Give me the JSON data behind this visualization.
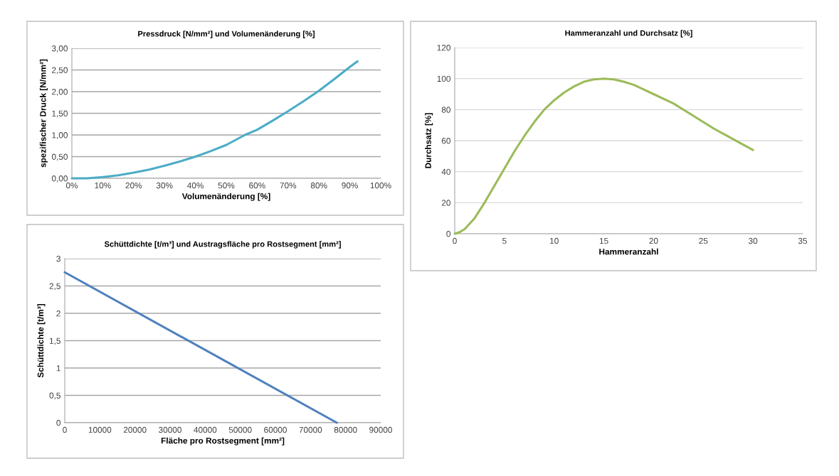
{
  "chart_data": [
    {
      "type": "line",
      "title": "Pressdruck [N/mm²] und Volumenänderung [%]",
      "xlabel": "Volumenänderung [%]",
      "ylabel": "spezifischer Druck [N/mm²]",
      "x": [
        0,
        5,
        10,
        15,
        20,
        25,
        30,
        35,
        40,
        45,
        50,
        56,
        60,
        65,
        70,
        75,
        80,
        85,
        90,
        92.5
      ],
      "series": [
        {
          "color": "#4bacc6",
          "values": [
            0,
            0,
            0.03,
            0.07,
            0.13,
            0.2,
            0.29,
            0.39,
            0.5,
            0.63,
            0.77,
            1.0,
            1.12,
            1.33,
            1.55,
            1.78,
            2.02,
            2.29,
            2.57,
            2.7
          ]
        }
      ],
      "xlim": [
        0,
        100
      ],
      "xticks": [
        {
          "value": 0,
          "label": "0%"
        },
        {
          "value": 10,
          "label": "10%"
        },
        {
          "value": 20,
          "label": "20%"
        },
        {
          "value": 30,
          "label": "30%"
        },
        {
          "value": 40,
          "label": "40%"
        },
        {
          "value": 50,
          "label": "50%"
        },
        {
          "value": 60,
          "label": "60%"
        },
        {
          "value": 70,
          "label": "70%"
        },
        {
          "value": 80,
          "label": "80%"
        },
        {
          "value": 90,
          "label": "90%"
        },
        {
          "value": 100,
          "label": "100%"
        }
      ],
      "ylim": [
        0,
        3
      ],
      "yticks": [
        {
          "value": 0,
          "label": "0,00"
        },
        {
          "value": 0.5,
          "label": "0,50"
        },
        {
          "value": 1,
          "label": "1,00"
        },
        {
          "value": 1.5,
          "label": "1,50"
        },
        {
          "value": 2,
          "label": "2,00"
        },
        {
          "value": 2.5,
          "label": "2,50"
        },
        {
          "value": 3,
          "label": "3,00"
        }
      ],
      "grid": "y",
      "marker": "none",
      "line_style": "solid"
    },
    {
      "type": "line",
      "title": "Hammeranzahl und Durchsatz [%]",
      "xlabel": "Hammeranzahl",
      "ylabel": "Durchsatz [%]",
      "x": [
        0,
        0.5,
        1,
        2,
        3,
        4,
        5,
        6,
        7,
        8,
        9,
        10,
        11,
        12,
        13,
        14,
        15,
        16,
        17,
        18,
        19,
        20,
        22,
        24,
        26,
        28,
        30
      ],
      "series": [
        {
          "color": "#9bbb59",
          "values": [
            0,
            1,
            3,
            10,
            20,
            31,
            42,
            53,
            63,
            72,
            80,
            86,
            91,
            95,
            98,
            99.5,
            100,
            99.5,
            98,
            96,
            93,
            90,
            84,
            76,
            68,
            61,
            54
          ]
        }
      ],
      "xlim": [
        0,
        35
      ],
      "xticks": [
        0,
        5,
        10,
        15,
        20,
        25,
        30,
        35
      ],
      "ylim": [
        0,
        120
      ],
      "yticks": [
        0,
        20,
        40,
        60,
        80,
        100,
        120
      ],
      "grid": "y",
      "marker": "none",
      "line_style": "solid"
    },
    {
      "type": "line",
      "title": "Schüttdichte [t/m³] und Austragsfläche pro Rostsegment [mm²]",
      "xlabel": "Fläche pro Rostsegment [mm²]",
      "ylabel": "Schüttdichte [t/m³]",
      "x": [
        0,
        77500
      ],
      "series": [
        {
          "color": "#4f81bd",
          "values": [
            2.75,
            0
          ]
        }
      ],
      "xlim": [
        0,
        90000
      ],
      "xticks": [
        0,
        10000,
        20000,
        30000,
        40000,
        50000,
        60000,
        70000,
        80000,
        90000
      ],
      "ylim": [
        0,
        3
      ],
      "yticks": [
        0,
        {
          "value": 0.5,
          "label": "0,5"
        },
        1,
        {
          "value": 1.5,
          "label": "1,5"
        },
        2,
        {
          "value": 2.5,
          "label": "2,5"
        },
        3
      ],
      "grid": "y",
      "marker": "none",
      "line_style": "solid"
    }
  ]
}
